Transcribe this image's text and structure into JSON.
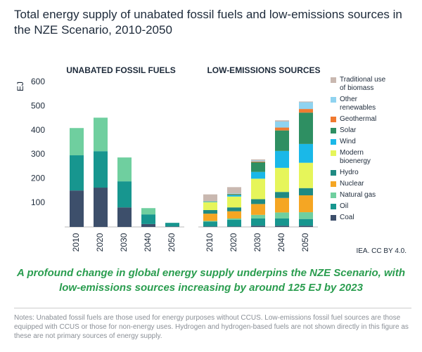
{
  "title": "Total energy supply of unabated fossil fuels and low-emissions sources in the NZE Scenario, 2010-2050",
  "subtitle": "A profound change in global energy supply underpins the NZE Scenario, with low-emissions sources increasing by around 125 EJ by 2023",
  "source": "IEA. CC BY 4.0.",
  "notes": "Notes: Unabated fossil fuels are those used for energy purposes without CCUS. Low-emissions fossil fuel sources are those equipped with CCUS or those for non-energy uses. Hydrogen and hydrogen-based fuels are not shown directly in this figure as these are not primary sources of energy supply.",
  "chart_data": [
    {
      "type": "stacked-bar",
      "title": "UNABATED FOSSIL FUELS",
      "ylabel": "EJ",
      "categories": [
        "2010",
        "2020",
        "2030",
        "2040",
        "2050"
      ],
      "ylim": [
        0,
        600
      ],
      "yticks": [
        100,
        200,
        300,
        400,
        500,
        600
      ],
      "series": [
        {
          "color": "#3d4f6b",
          "values": [
            151,
            163,
            81,
            12,
            2
          ]
        },
        {
          "color": "#17968f",
          "values": [
            146,
            151,
            108,
            40,
            15
          ]
        },
        {
          "color": "#6fcf9f",
          "values": [
            113,
            139,
            99,
            26,
            0
          ]
        }
      ]
    },
    {
      "type": "stacked-bar",
      "title": "LOW-EMISSIONS SOURCES",
      "categories": [
        "2010",
        "2020",
        "2030",
        "2040",
        "2050"
      ],
      "ylim": [
        0,
        600
      ],
      "series": [
        {
          "name": "Coal",
          "color": "#3d4f6b",
          "values": [
            2,
            2,
            5,
            5,
            5
          ]
        },
        {
          "name": "Oil",
          "color": "#17968f",
          "values": [
            20,
            28,
            30,
            30,
            28
          ]
        },
        {
          "name": "Natural gas",
          "color": "#6fcf9f",
          "values": [
            3,
            5,
            15,
            25,
            28
          ]
        },
        {
          "name": "Nuclear",
          "color": "#f5a623",
          "values": [
            30,
            30,
            45,
            60,
            70
          ]
        },
        {
          "name": "Hydro",
          "color": "#1f8a82",
          "values": [
            15,
            16,
            20,
            25,
            30
          ]
        },
        {
          "name": "Modern bioenergy",
          "color": "#e6f55a",
          "values": [
            33,
            45,
            85,
            100,
            105
          ]
        },
        {
          "name": "Wind",
          "color": "#1ab8e8",
          "values": [
            2,
            6,
            28,
            70,
            78
          ]
        },
        {
          "name": "Solar",
          "color": "#2e8f62",
          "values": [
            1,
            4,
            40,
            85,
            130
          ]
        },
        {
          "name": "Geothermal",
          "color": "#f07a30",
          "values": [
            1,
            1,
            3,
            12,
            15
          ]
        },
        {
          "name": "Other renewables",
          "color": "#8fd3f0",
          "values": [
            1,
            2,
            4,
            25,
            28
          ]
        },
        {
          "name": "Traditional use of biomass",
          "color": "#c9b8b0",
          "values": [
            27,
            26,
            5,
            5,
            3
          ]
        }
      ]
    }
  ]
}
